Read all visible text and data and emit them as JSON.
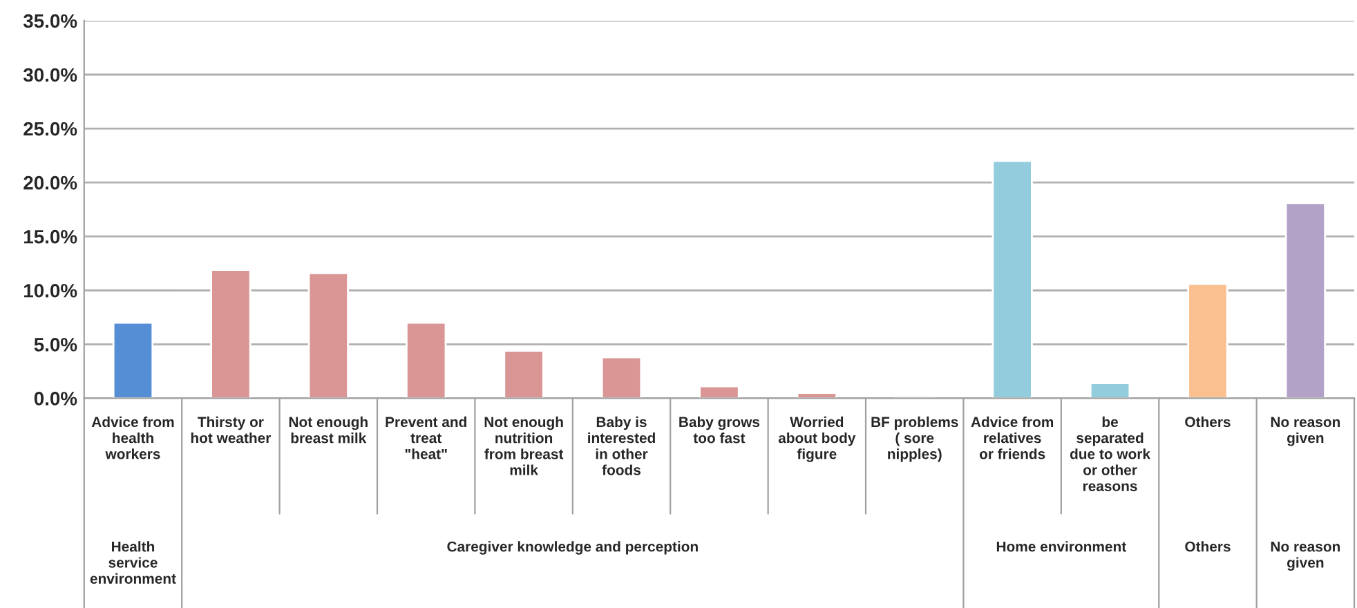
{
  "chart_data": {
    "type": "bar",
    "categories": [
      "Advice from health workers",
      "Thirsty or hot weather",
      "Not enough breast milk",
      "Prevent and treat \"heat\"",
      "Not enough nutrition from breast milk",
      "Baby is interested in other foods",
      "Baby grows too fast",
      "Worried about body figure",
      "BF problems ( sore nipples)",
      "Advice from relatives or friends",
      "be separated due to work or other reasons",
      "Others",
      "No reason given"
    ],
    "values": [
      7.0,
      11.9,
      11.6,
      7.0,
      4.4,
      3.8,
      1.1,
      0.5,
      0.2,
      22.0,
      1.4,
      10.6,
      18.1
    ],
    "colors": [
      "#558ed5",
      "#d99694",
      "#d99694",
      "#d99694",
      "#d99694",
      "#d99694",
      "#d99694",
      "#d99694",
      "#d99694",
      "#93cddd",
      "#93cddd",
      "#fac090",
      "#b3a2c7"
    ],
    "ylim": [
      0,
      35
    ],
    "yticks": [
      {
        "value": 0,
        "label": "0.0%"
      },
      {
        "value": 5,
        "label": "5.0%"
      },
      {
        "value": 10,
        "label": "10.0%"
      },
      {
        "value": 15,
        "label": "15.0%"
      },
      {
        "value": 20,
        "label": "20.0%"
      },
      {
        "value": 25,
        "label": "25.0%"
      },
      {
        "value": 30,
        "label": "30.0%"
      },
      {
        "value": 35,
        "label": "35.0%"
      }
    ],
    "grid": "y",
    "annotations": [
      "Health service environment",
      "Caregiver knowledge and perception",
      "Home environment",
      "Others",
      "No reason given"
    ]
  }
}
